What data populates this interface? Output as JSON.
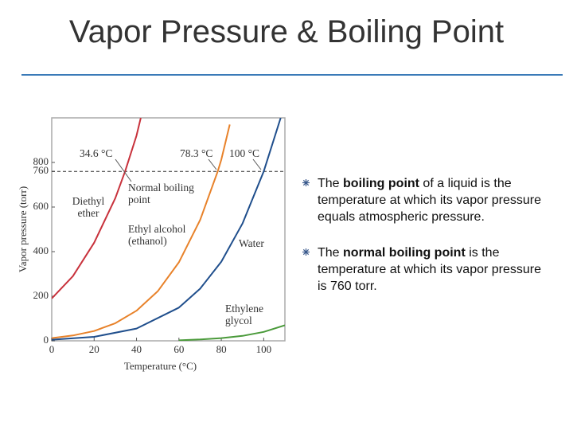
{
  "slide": {
    "title": "Vapor Pressure & Boiling Point",
    "bullets": [
      [
        {
          "text": "The "
        },
        {
          "text": "boiling point",
          "bold": true
        },
        {
          "text": " of a liquid is the temperature at which its vapor pressure equals atmospheric pressure."
        }
      ],
      [
        {
          "text": "The "
        },
        {
          "text": "normal boiling point",
          "bold": true
        },
        {
          "text": " is the temperature at which its vapor pressure is 760 torr."
        }
      ]
    ]
  },
  "chart_data": {
    "type": "line",
    "x_label": "Temperature (°C)",
    "y_label": "Vapor pressure (torr)",
    "xlim": [
      0,
      110
    ],
    "xticks": [
      0,
      20,
      40,
      60,
      80,
      100
    ],
    "ylim": [
      0,
      1000
    ],
    "yticks": [
      0,
      200,
      400,
      600,
      760,
      800
    ],
    "hline": 760,
    "grid": false,
    "series": [
      {
        "name": "Diethyl ether",
        "color": "#c8323c",
        "x": [
          0,
          10,
          20,
          30,
          34.6,
          40,
          42
        ],
        "values": [
          190,
          290,
          440,
          640,
          760,
          920,
          1000
        ]
      },
      {
        "name": "Ethyl alcohol (ethanol)",
        "color": "#e8822a",
        "x": [
          0,
          10,
          20,
          30,
          40,
          50,
          60,
          70,
          78.3,
          80,
          84
        ],
        "values": [
          12,
          24,
          44,
          79,
          135,
          222,
          352,
          542,
          760,
          813,
          970
        ]
      },
      {
        "name": "Water",
        "color": "#1f4e8c",
        "x": [
          0,
          20,
          40,
          60,
          70,
          80,
          90,
          100,
          108
        ],
        "values": [
          5,
          18,
          55,
          149,
          234,
          355,
          526,
          760,
          1000
        ]
      },
      {
        "name": "Ethylene glycol",
        "color": "#4a9a3a",
        "x": [
          60,
          70,
          80,
          90,
          100,
          110
        ],
        "values": [
          2,
          6,
          12,
          22,
          40,
          70
        ]
      }
    ],
    "annotations": [
      "34.6 °C",
      "78.3 °C",
      "100 °C",
      "Normal boiling point"
    ]
  }
}
